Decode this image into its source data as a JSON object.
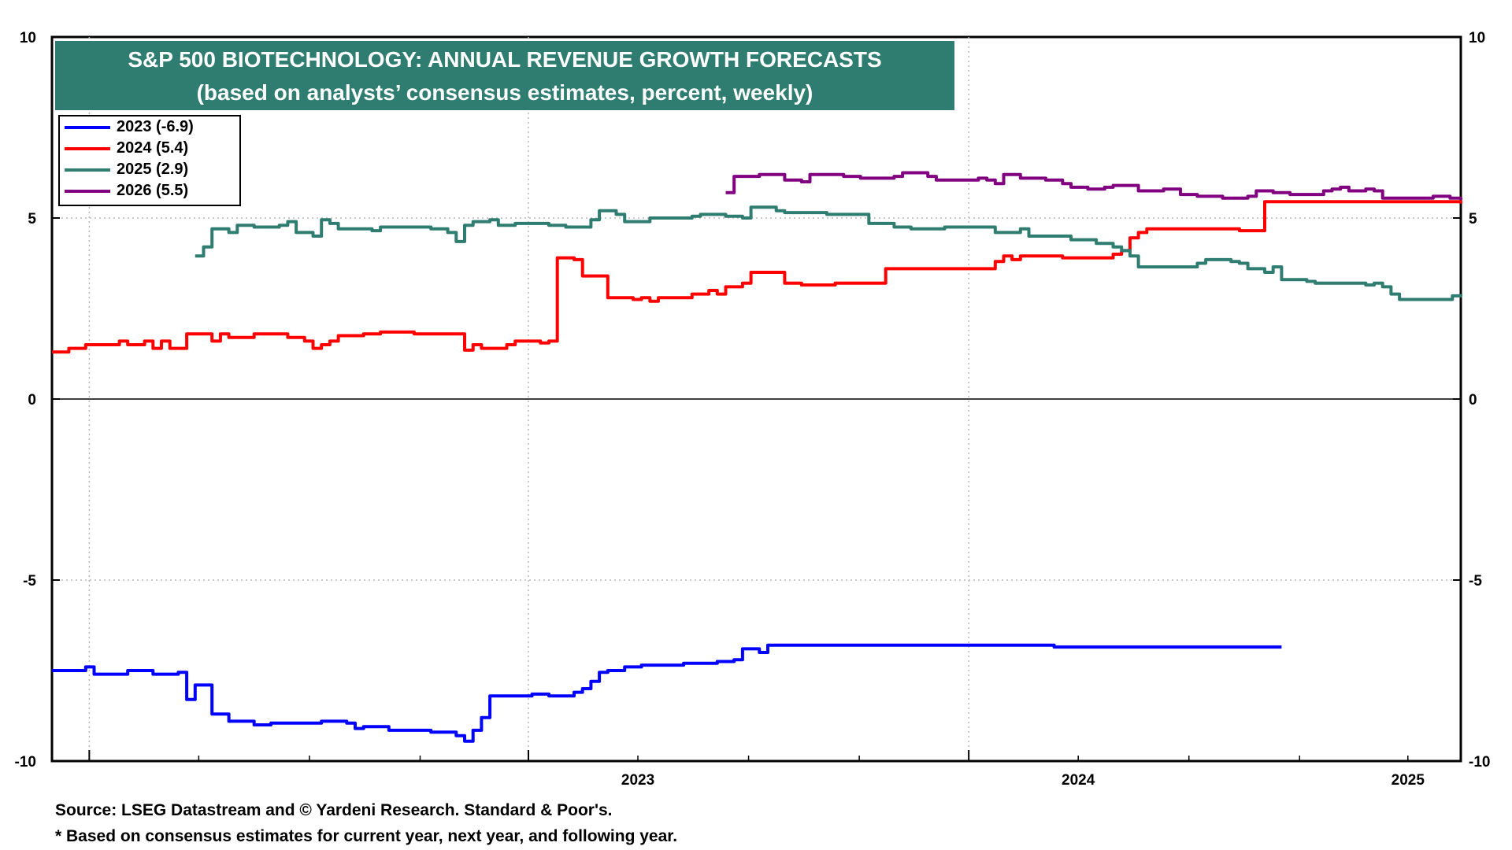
{
  "title": {
    "line1": "S&P 500 BIOTECHNOLOGY: ANNUAL REVENUE GROWTH FORECASTS",
    "line2": "(based on analysts’ consensus estimates, percent, weekly)"
  },
  "legend": {
    "placement": "top-left",
    "items": [
      {
        "label": "2023 (-6.9)",
        "color": "#0000ff"
      },
      {
        "label": "2024 (5.4)",
        "color": "#ff0000"
      },
      {
        "label": "2025 (2.9)",
        "color": "#2f7d70"
      },
      {
        "label": "2026 (5.5)",
        "color": "#800080"
      }
    ]
  },
  "footer": {
    "source": "Source: LSEG Datastream and © Yardeni Research. Standard & Poor's.",
    "note": "* Based on consensus estimates for current year, next year, and following year."
  },
  "chart_data": {
    "type": "line",
    "title": "S&P 500 BIOTECHNOLOGY: ANNUAL REVENUE GROWTH FORECASTS",
    "subtitle": "(based on analysts’ consensus estimates, percent, weekly)",
    "xlim": [
      "2022-03-01",
      "2025-05-15"
    ],
    "ylim": [
      -10,
      10
    ],
    "y_ticks": [
      -10,
      -5,
      0,
      5,
      10
    ],
    "y_tick_labels_left": [
      "-10",
      "-5",
      "0",
      "5",
      "10"
    ],
    "y_tick_labels_right": [
      "-10",
      "-5",
      "0",
      "5",
      "10"
    ],
    "x_tick_labels": [
      {
        "label": "2023",
        "date": "2023-07-01"
      },
      {
        "label": "2024",
        "date": "2024-07-01"
      },
      {
        "label": "2025",
        "date": "2025-04-01"
      }
    ],
    "year_gridlines": [
      "2022-04-01",
      "2023-04-01",
      "2024-04-01"
    ],
    "grid": true,
    "series": [
      {
        "name": "2023 (-6.9)",
        "color": "#0000ff",
        "points": [
          [
            "2022-03-01",
            -7.5
          ],
          [
            "2022-03-22",
            -7.5
          ],
          [
            "2022-03-29",
            -7.4
          ],
          [
            "2022-04-05",
            -7.6
          ],
          [
            "2022-04-26",
            -7.6
          ],
          [
            "2022-05-03",
            -7.5
          ],
          [
            "2022-05-24",
            -7.6
          ],
          [
            "2022-06-07",
            -7.6
          ],
          [
            "2022-06-14",
            -7.55
          ],
          [
            "2022-06-21",
            -8.3
          ],
          [
            "2022-06-28",
            -7.9
          ],
          [
            "2022-07-05",
            -7.9
          ],
          [
            "2022-07-12",
            -8.7
          ],
          [
            "2022-07-26",
            -8.9
          ],
          [
            "2022-08-16",
            -9.0
          ],
          [
            "2022-08-30",
            -8.95
          ],
          [
            "2022-10-04",
            -8.95
          ],
          [
            "2022-10-11",
            -8.9
          ],
          [
            "2022-11-01",
            -8.95
          ],
          [
            "2022-11-08",
            -9.1
          ],
          [
            "2022-11-15",
            -9.05
          ],
          [
            "2022-12-06",
            -9.15
          ],
          [
            "2023-01-10",
            -9.2
          ],
          [
            "2023-01-31",
            -9.3
          ],
          [
            "2023-02-07",
            -9.45
          ],
          [
            "2023-02-14",
            -9.15
          ],
          [
            "2023-02-21",
            -8.8
          ],
          [
            "2023-02-28",
            -8.2
          ],
          [
            "2023-03-28",
            -8.2
          ],
          [
            "2023-04-04",
            -8.15
          ],
          [
            "2023-04-18",
            -8.2
          ],
          [
            "2023-05-09",
            -8.1
          ],
          [
            "2023-05-16",
            -8.0
          ],
          [
            "2023-05-23",
            -7.8
          ],
          [
            "2023-05-30",
            -7.55
          ],
          [
            "2023-06-06",
            -7.5
          ],
          [
            "2023-06-20",
            -7.4
          ],
          [
            "2023-07-04",
            -7.35
          ],
          [
            "2023-08-08",
            -7.3
          ],
          [
            "2023-08-22",
            -7.3
          ],
          [
            "2023-09-05",
            -7.25
          ],
          [
            "2023-09-19",
            -7.2
          ],
          [
            "2023-09-26",
            -6.9
          ],
          [
            "2023-10-10",
            -7.0
          ],
          [
            "2023-10-17",
            -6.8
          ],
          [
            "2024-06-04",
            -6.8
          ],
          [
            "2024-06-11",
            -6.85
          ],
          [
            "2024-12-17",
            -6.85
          ]
        ]
      },
      {
        "name": "2024 (5.4)",
        "color": "#ff0000",
        "points": [
          [
            "2022-03-01",
            1.3
          ],
          [
            "2022-03-15",
            1.4
          ],
          [
            "2022-03-29",
            1.5
          ],
          [
            "2022-04-19",
            1.5
          ],
          [
            "2022-04-26",
            1.6
          ],
          [
            "2022-05-03",
            1.5
          ],
          [
            "2022-05-17",
            1.6
          ],
          [
            "2022-05-24",
            1.4
          ],
          [
            "2022-05-31",
            1.6
          ],
          [
            "2022-06-07",
            1.4
          ],
          [
            "2022-06-21",
            1.8
          ],
          [
            "2022-07-05",
            1.8
          ],
          [
            "2022-07-12",
            1.6
          ],
          [
            "2022-07-19",
            1.8
          ],
          [
            "2022-07-26",
            1.7
          ],
          [
            "2022-08-16",
            1.8
          ],
          [
            "2022-09-06",
            1.8
          ],
          [
            "2022-09-13",
            1.7
          ],
          [
            "2022-09-27",
            1.6
          ],
          [
            "2022-10-04",
            1.4
          ],
          [
            "2022-10-11",
            1.5
          ],
          [
            "2022-10-18",
            1.6
          ],
          [
            "2022-10-25",
            1.75
          ],
          [
            "2022-11-15",
            1.8
          ],
          [
            "2022-11-29",
            1.85
          ],
          [
            "2022-12-27",
            1.8
          ],
          [
            "2023-01-10",
            1.8
          ],
          [
            "2023-01-31",
            1.8
          ],
          [
            "2023-02-07",
            1.35
          ],
          [
            "2023-02-14",
            1.5
          ],
          [
            "2023-02-21",
            1.4
          ],
          [
            "2023-03-14",
            1.5
          ],
          [
            "2023-03-21",
            1.6
          ],
          [
            "2023-04-11",
            1.55
          ],
          [
            "2023-04-18",
            1.6
          ],
          [
            "2023-04-25",
            3.9
          ],
          [
            "2023-05-09",
            3.85
          ],
          [
            "2023-05-16",
            3.4
          ],
          [
            "2023-05-30",
            3.4
          ],
          [
            "2023-06-06",
            2.8
          ],
          [
            "2023-06-20",
            2.8
          ],
          [
            "2023-06-27",
            2.75
          ],
          [
            "2023-07-04",
            2.8
          ],
          [
            "2023-07-11",
            2.7
          ],
          [
            "2023-07-18",
            2.8
          ],
          [
            "2023-08-15",
            2.9
          ],
          [
            "2023-08-29",
            3.0
          ],
          [
            "2023-09-05",
            2.9
          ],
          [
            "2023-09-12",
            3.1
          ],
          [
            "2023-09-26",
            3.2
          ],
          [
            "2023-10-03",
            3.5
          ],
          [
            "2023-10-24",
            3.5
          ],
          [
            "2023-10-31",
            3.2
          ],
          [
            "2023-11-14",
            3.15
          ],
          [
            "2023-12-05",
            3.15
          ],
          [
            "2023-12-12",
            3.2
          ],
          [
            "2024-01-16",
            3.2
          ],
          [
            "2024-01-23",
            3.6
          ],
          [
            "2024-02-06",
            3.6
          ],
          [
            "2024-02-13",
            3.6
          ],
          [
            "2024-03-12",
            3.6
          ],
          [
            "2024-04-16",
            3.6
          ],
          [
            "2024-04-23",
            3.8
          ],
          [
            "2024-04-30",
            3.95
          ],
          [
            "2024-05-07",
            3.85
          ],
          [
            "2024-05-14",
            3.95
          ],
          [
            "2024-06-18",
            3.9
          ],
          [
            "2024-07-16",
            3.9
          ],
          [
            "2024-07-30",
            4.0
          ],
          [
            "2024-08-06",
            4.1
          ],
          [
            "2024-08-13",
            4.45
          ],
          [
            "2024-08-20",
            4.6
          ],
          [
            "2024-08-27",
            4.7
          ],
          [
            "2024-11-05",
            4.7
          ],
          [
            "2024-11-12",
            4.65
          ],
          [
            "2024-11-26",
            4.65
          ],
          [
            "2024-12-03",
            5.45
          ],
          [
            "2025-05-15",
            5.4
          ]
        ]
      },
      {
        "name": "2025 (2.9)",
        "color": "#2f7d70",
        "points": [
          [
            "2022-06-28",
            3.95
          ],
          [
            "2022-07-05",
            4.2
          ],
          [
            "2022-07-12",
            4.7
          ],
          [
            "2022-07-26",
            4.6
          ],
          [
            "2022-08-02",
            4.8
          ],
          [
            "2022-08-16",
            4.75
          ],
          [
            "2022-09-06",
            4.8
          ],
          [
            "2022-09-13",
            4.9
          ],
          [
            "2022-09-20",
            4.6
          ],
          [
            "2022-10-04",
            4.5
          ],
          [
            "2022-10-11",
            4.95
          ],
          [
            "2022-10-18",
            4.85
          ],
          [
            "2022-10-25",
            4.7
          ],
          [
            "2022-11-22",
            4.65
          ],
          [
            "2022-11-29",
            4.75
          ],
          [
            "2023-01-10",
            4.7
          ],
          [
            "2023-01-24",
            4.6
          ],
          [
            "2023-01-31",
            4.35
          ],
          [
            "2023-02-07",
            4.8
          ],
          [
            "2023-02-14",
            4.9
          ],
          [
            "2023-02-28",
            4.95
          ],
          [
            "2023-03-07",
            4.8
          ],
          [
            "2023-03-21",
            4.85
          ],
          [
            "2023-04-11",
            4.85
          ],
          [
            "2023-04-18",
            4.8
          ],
          [
            "2023-05-02",
            4.75
          ],
          [
            "2023-05-23",
            4.95
          ],
          [
            "2023-05-30",
            5.2
          ],
          [
            "2023-06-13",
            5.1
          ],
          [
            "2023-06-20",
            4.9
          ],
          [
            "2023-07-04",
            4.9
          ],
          [
            "2023-07-11",
            5.0
          ],
          [
            "2023-08-15",
            5.05
          ],
          [
            "2023-08-22",
            5.1
          ],
          [
            "2023-09-12",
            5.05
          ],
          [
            "2023-09-26",
            5.0
          ],
          [
            "2023-10-03",
            5.3
          ],
          [
            "2023-10-24",
            5.2
          ],
          [
            "2023-10-31",
            5.15
          ],
          [
            "2023-12-05",
            5.1
          ],
          [
            "2023-12-12",
            5.1
          ],
          [
            "2024-01-09",
            4.85
          ],
          [
            "2024-01-30",
            4.75
          ],
          [
            "2024-02-13",
            4.7
          ],
          [
            "2024-03-12",
            4.75
          ],
          [
            "2024-04-16",
            4.75
          ],
          [
            "2024-04-23",
            4.6
          ],
          [
            "2024-05-07",
            4.6
          ],
          [
            "2024-05-14",
            4.7
          ],
          [
            "2024-05-21",
            4.5
          ],
          [
            "2024-06-18",
            4.5
          ],
          [
            "2024-06-25",
            4.4
          ],
          [
            "2024-07-16",
            4.3
          ],
          [
            "2024-07-30",
            4.2
          ],
          [
            "2024-08-06",
            4.1
          ],
          [
            "2024-08-13",
            3.95
          ],
          [
            "2024-08-20",
            3.65
          ],
          [
            "2024-09-03",
            3.65
          ],
          [
            "2024-10-01",
            3.65
          ],
          [
            "2024-10-08",
            3.75
          ],
          [
            "2024-10-15",
            3.85
          ],
          [
            "2024-11-05",
            3.8
          ],
          [
            "2024-11-12",
            3.75
          ],
          [
            "2024-11-19",
            3.6
          ],
          [
            "2024-12-03",
            3.5
          ],
          [
            "2024-12-10",
            3.65
          ],
          [
            "2024-12-17",
            3.3
          ],
          [
            "2025-01-07",
            3.25
          ],
          [
            "2025-01-14",
            3.2
          ],
          [
            "2025-02-18",
            3.2
          ],
          [
            "2025-02-25",
            3.15
          ],
          [
            "2025-03-04",
            3.2
          ],
          [
            "2025-03-11",
            3.1
          ],
          [
            "2025-03-18",
            2.9
          ],
          [
            "2025-03-25",
            2.75
          ],
          [
            "2025-05-01",
            2.75
          ],
          [
            "2025-05-08",
            2.85
          ],
          [
            "2025-05-15",
            2.9
          ]
        ]
      },
      {
        "name": "2026 (5.5)",
        "color": "#800080",
        "points": [
          [
            "2023-09-12",
            5.7
          ],
          [
            "2023-09-19",
            6.15
          ],
          [
            "2023-10-10",
            6.2
          ],
          [
            "2023-10-24",
            6.2
          ],
          [
            "2023-10-31",
            6.05
          ],
          [
            "2023-11-14",
            6.0
          ],
          [
            "2023-11-21",
            6.2
          ],
          [
            "2023-12-19",
            6.15
          ],
          [
            "2024-01-02",
            6.1
          ],
          [
            "2024-01-30",
            6.15
          ],
          [
            "2024-02-06",
            6.25
          ],
          [
            "2024-02-27",
            6.15
          ],
          [
            "2024-03-05",
            6.05
          ],
          [
            "2024-04-09",
            6.1
          ],
          [
            "2024-04-16",
            6.05
          ],
          [
            "2024-04-23",
            5.95
          ],
          [
            "2024-04-30",
            6.2
          ],
          [
            "2024-05-14",
            6.1
          ],
          [
            "2024-06-04",
            6.05
          ],
          [
            "2024-06-18",
            5.95
          ],
          [
            "2024-06-25",
            5.85
          ],
          [
            "2024-07-09",
            5.8
          ],
          [
            "2024-07-23",
            5.85
          ],
          [
            "2024-07-30",
            5.9
          ],
          [
            "2024-08-20",
            5.75
          ],
          [
            "2024-09-10",
            5.8
          ],
          [
            "2024-09-24",
            5.65
          ],
          [
            "2024-10-08",
            5.6
          ],
          [
            "2024-10-29",
            5.55
          ],
          [
            "2024-11-12",
            5.55
          ],
          [
            "2024-11-19",
            5.6
          ],
          [
            "2024-11-26",
            5.75
          ],
          [
            "2024-12-10",
            5.7
          ],
          [
            "2024-12-24",
            5.65
          ],
          [
            "2025-01-07",
            5.65
          ],
          [
            "2025-01-21",
            5.75
          ],
          [
            "2025-01-28",
            5.8
          ],
          [
            "2025-02-04",
            5.85
          ],
          [
            "2025-02-11",
            5.75
          ],
          [
            "2025-02-25",
            5.8
          ],
          [
            "2025-03-04",
            5.75
          ],
          [
            "2025-03-11",
            5.55
          ],
          [
            "2025-04-15",
            5.55
          ],
          [
            "2025-04-22",
            5.6
          ],
          [
            "2025-05-06",
            5.55
          ],
          [
            "2025-05-15",
            5.5
          ]
        ]
      }
    ]
  }
}
